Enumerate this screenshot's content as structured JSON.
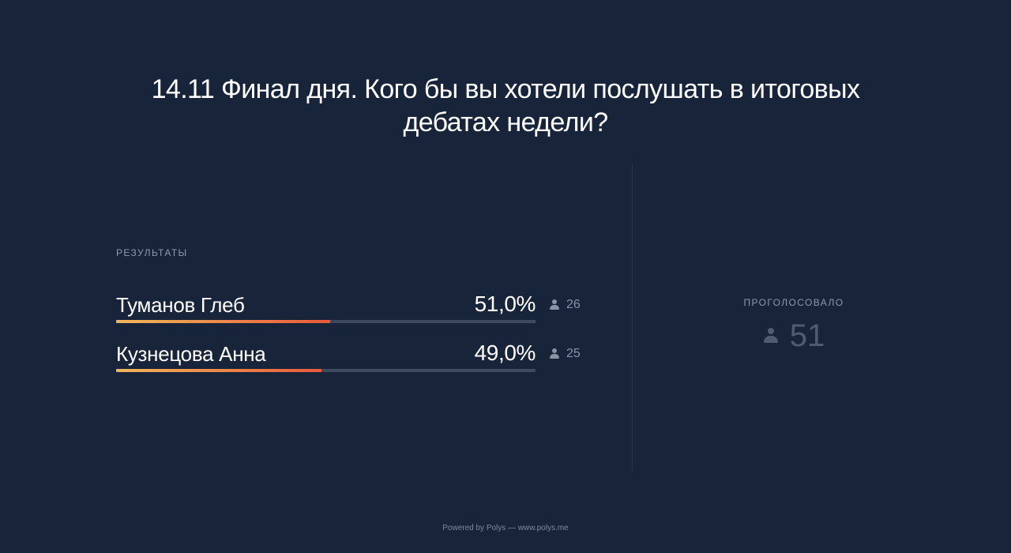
{
  "poll": {
    "title": "14.11 Финал дня. Кого бы вы хотели послушать в итоговых дебатах недели?",
    "results_label": "РЕЗУЛЬТАТЫ",
    "options": [
      {
        "name": "Туманов Глеб",
        "percent_text": "51,0%",
        "percent": 51.0,
        "votes": "26"
      },
      {
        "name": "Кузнецова Анна",
        "percent_text": "49,0%",
        "percent": 49.0,
        "votes": "25"
      }
    ],
    "total": {
      "label": "ПРОГОЛОСОВАЛО",
      "count": "51"
    }
  },
  "footer": {
    "text": "Powered by Polys — www.polys.me"
  },
  "colors": {
    "background": "#18243a",
    "bar_start": "#f0b75a",
    "bar_end": "#ea5a3a",
    "track": "#3e4a5d"
  },
  "icons": {
    "voter": "person-icon"
  }
}
